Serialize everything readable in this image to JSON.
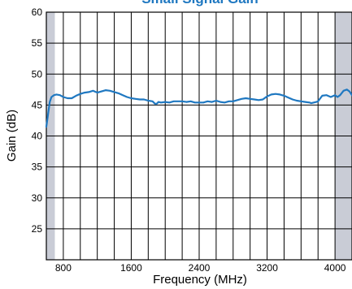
{
  "chart_data": {
    "type": "line",
    "title": "Small Signal Gain",
    "xlabel": "Frequency (MHz)",
    "ylabel": "Gain (dB)",
    "xlim": [
      600,
      4200
    ],
    "ylim": [
      20,
      60
    ],
    "xticks": [
      800,
      1600,
      2400,
      3200,
      4000
    ],
    "yticks": [
      25,
      30,
      35,
      40,
      45,
      50,
      55,
      60
    ],
    "grid": true,
    "shaded_bands": [
      [
        600,
        700
      ],
      [
        4000,
        4200
      ]
    ],
    "colors": {
      "line": "#1f78c1",
      "title": "#1f78c1",
      "band": "#c9ccd6"
    },
    "series": [
      {
        "x": [
          600,
          620,
          640,
          660,
          690,
          720,
          760,
          800,
          850,
          900,
          950,
          1000,
          1050,
          1100,
          1150,
          1200,
          1250,
          1300,
          1350,
          1400,
          1450,
          1500,
          1550,
          1600,
          1650,
          1700,
          1750,
          1800,
          1850,
          1880,
          1900,
          1920,
          1950,
          2000,
          2050,
          2100,
          2150,
          2200,
          2250,
          2300,
          2350,
          2400,
          2450,
          2500,
          2550,
          2600,
          2650,
          2700,
          2750,
          2800,
          2850,
          2900,
          2950,
          3000,
          3050,
          3100,
          3150,
          3200,
          3250,
          3300,
          3350,
          3400,
          3450,
          3500,
          3550,
          3600,
          3650,
          3700,
          3720,
          3750,
          3780,
          3800,
          3850,
          3900,
          3950,
          4000,
          4030,
          4060,
          4100,
          4140,
          4170,
          4200
        ],
        "values": [
          41.5,
          43.5,
          45.5,
          46.3,
          46.6,
          46.7,
          46.6,
          46.3,
          46.1,
          46.1,
          46.5,
          46.8,
          47.0,
          47.1,
          47.3,
          47.0,
          47.2,
          47.4,
          47.3,
          47.1,
          46.9,
          46.6,
          46.3,
          46.1,
          46.0,
          45.9,
          45.9,
          45.7,
          45.6,
          45.2,
          45.2,
          45.5,
          45.4,
          45.5,
          45.4,
          45.6,
          45.6,
          45.6,
          45.5,
          45.6,
          45.4,
          45.4,
          45.4,
          45.6,
          45.5,
          45.7,
          45.5,
          45.4,
          45.6,
          45.6,
          45.8,
          46.0,
          46.1,
          46.0,
          45.9,
          45.8,
          45.9,
          46.4,
          46.7,
          46.8,
          46.7,
          46.5,
          46.2,
          45.9,
          45.7,
          45.6,
          45.5,
          45.4,
          45.3,
          45.4,
          45.5,
          45.6,
          46.5,
          46.6,
          46.3,
          46.6,
          46.3,
          46.6,
          47.3,
          47.5,
          47.2,
          46.6
        ]
      }
    ]
  }
}
